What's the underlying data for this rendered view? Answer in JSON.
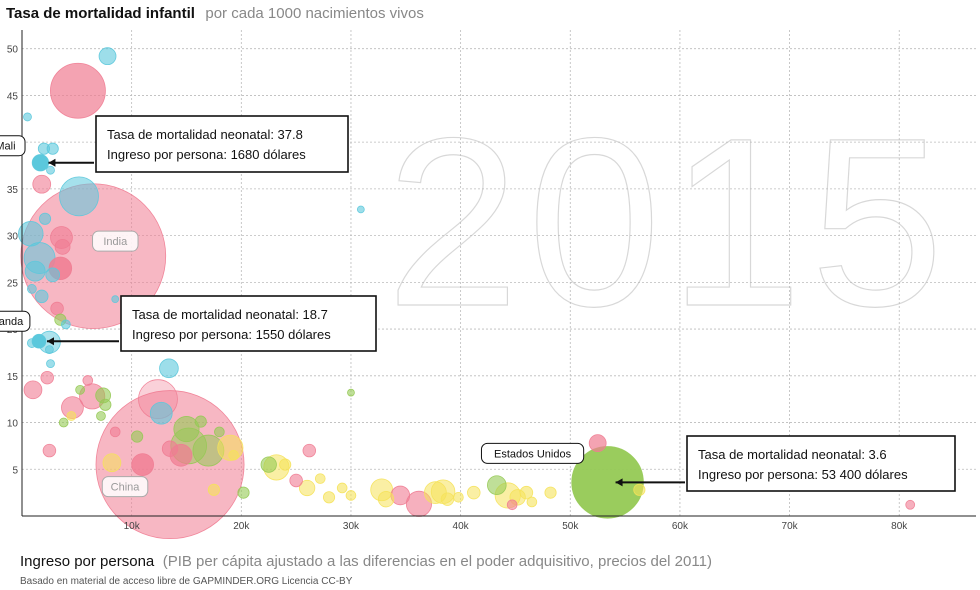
{
  "header": {
    "title": "Tasa de mortalidad infantil",
    "subtitle": "por cada 1000 nacimientos vivos"
  },
  "footer": {
    "xlabel_main": "Ingreso por persona",
    "xlabel_sub": "(PIB per cápita ajustado a las diferencias en el poder adquisitivo, precios del 2011)",
    "source": "Basado en material de acceso libre de GAPMINDER.ORG Licencia CC-BY"
  },
  "year_label": "2015",
  "colors": {
    "africa": "#5bc8dc",
    "asia": "#f07c92",
    "americas": "#95c954",
    "europe": "#f5e25a"
  },
  "chart_data": {
    "type": "scatter",
    "xlim": [
      0,
      87000
    ],
    "ylim": [
      0,
      52
    ],
    "x_ticks": [
      {
        "v": 10000,
        "label": "10k"
      },
      {
        "v": 20000,
        "label": "20k"
      },
      {
        "v": 30000,
        "label": "30k"
      },
      {
        "v": 40000,
        "label": "40k"
      },
      {
        "v": 50000,
        "label": "50k"
      },
      {
        "v": 60000,
        "label": "60k"
      },
      {
        "v": 70000,
        "label": "70k"
      },
      {
        "v": 80000,
        "label": "80k"
      }
    ],
    "y_ticks": [
      {
        "v": 5,
        "label": "5"
      },
      {
        "v": 10,
        "label": "10"
      },
      {
        "v": 15,
        "label": "15"
      },
      {
        "v": 20,
        "label": "20"
      },
      {
        "v": 25,
        "label": "25"
      },
      {
        "v": 30,
        "label": "30"
      },
      {
        "v": 35,
        "label": "35"
      },
      {
        "v": 40,
        "label": "40"
      },
      {
        "v": 45,
        "label": "45"
      },
      {
        "v": 50,
        "label": "50"
      }
    ],
    "grid": true,
    "points": [
      {
        "x": 6500,
        "y": 27.8,
        "size": 1311,
        "region": "asia",
        "alpha": 0.55
      },
      {
        "x": 13500,
        "y": 5.5,
        "size": 1371,
        "region": "asia",
        "alpha": 0.55
      },
      {
        "x": 53400,
        "y": 3.6,
        "size": 321,
        "region": "americas",
        "alpha": 0.95
      },
      {
        "x": 5100,
        "y": 45.5,
        "size": 189,
        "region": "asia",
        "alpha": 0.7
      },
      {
        "x": 7800,
        "y": 49.2,
        "size": 18,
        "region": "africa",
        "alpha": 0.6
      },
      {
        "x": 1680,
        "y": 37.8,
        "size": 17,
        "region": "africa",
        "alpha": 1.0
      },
      {
        "x": 1550,
        "y": 18.7,
        "size": 12,
        "region": "africa",
        "alpha": 1.0
      },
      {
        "x": 2000,
        "y": 39.3,
        "size": 8,
        "region": "africa",
        "alpha": 0.6
      },
      {
        "x": 2800,
        "y": 39.3,
        "size": 8,
        "region": "africa",
        "alpha": 0.6
      },
      {
        "x": 500,
        "y": 42.7,
        "size": 4,
        "region": "africa",
        "alpha": 0.6
      },
      {
        "x": 5200,
        "y": 34.2,
        "size": 95,
        "region": "africa",
        "alpha": 0.55
      },
      {
        "x": 1800,
        "y": 35.5,
        "size": 20,
        "region": "asia",
        "alpha": 0.6
      },
      {
        "x": 2600,
        "y": 37.0,
        "size": 4,
        "region": "africa",
        "alpha": 0.6
      },
      {
        "x": 800,
        "y": 30.2,
        "size": 38,
        "region": "africa",
        "alpha": 0.6
      },
      {
        "x": 3600,
        "y": 29.8,
        "size": 30,
        "region": "asia",
        "alpha": 0.6
      },
      {
        "x": 2100,
        "y": 31.8,
        "size": 8,
        "region": "africa",
        "alpha": 0.6
      },
      {
        "x": 1600,
        "y": 27.6,
        "size": 60,
        "region": "africa",
        "alpha": 0.55
      },
      {
        "x": 1200,
        "y": 26.2,
        "size": 25,
        "region": "africa",
        "alpha": 0.6
      },
      {
        "x": 3500,
        "y": 26.5,
        "size": 32,
        "region": "asia",
        "alpha": 0.85
      },
      {
        "x": 3700,
        "y": 28.8,
        "size": 14,
        "region": "asia",
        "alpha": 0.6
      },
      {
        "x": 2800,
        "y": 25.8,
        "size": 12,
        "region": "africa",
        "alpha": 0.6
      },
      {
        "x": 900,
        "y": 24.3,
        "size": 5,
        "region": "africa",
        "alpha": 0.6
      },
      {
        "x": 1800,
        "y": 23.5,
        "size": 10,
        "region": "africa",
        "alpha": 0.6
      },
      {
        "x": 3200,
        "y": 22.2,
        "size": 10,
        "region": "asia",
        "alpha": 0.6
      },
      {
        "x": 3500,
        "y": 21.0,
        "size": 8,
        "region": "americas",
        "alpha": 0.6
      },
      {
        "x": 2500,
        "y": 18.6,
        "size": 30,
        "region": "africa",
        "alpha": 0.5
      },
      {
        "x": 900,
        "y": 18.5,
        "size": 5,
        "region": "africa",
        "alpha": 0.6
      },
      {
        "x": 4000,
        "y": 20.5,
        "size": 5,
        "region": "africa",
        "alpha": 0.6
      },
      {
        "x": 2500,
        "y": 17.8,
        "size": 4,
        "region": "africa",
        "alpha": 0.6
      },
      {
        "x": 2600,
        "y": 16.3,
        "size": 4,
        "region": "africa",
        "alpha": 0.6
      },
      {
        "x": 2300,
        "y": 14.8,
        "size": 10,
        "region": "asia",
        "alpha": 0.6
      },
      {
        "x": 5300,
        "y": 13.5,
        "size": 5,
        "region": "americas",
        "alpha": 0.6
      },
      {
        "x": 1000,
        "y": 13.5,
        "size": 20,
        "region": "asia",
        "alpha": 0.6
      },
      {
        "x": 6000,
        "y": 14.5,
        "size": 6,
        "region": "asia",
        "alpha": 0.6
      },
      {
        "x": 6400,
        "y": 12.8,
        "size": 40,
        "region": "asia",
        "alpha": 0.6
      },
      {
        "x": 7400,
        "y": 12.9,
        "size": 14,
        "region": "americas",
        "alpha": 0.6
      },
      {
        "x": 4600,
        "y": 11.6,
        "size": 30,
        "region": "asia",
        "alpha": 0.6
      },
      {
        "x": 7600,
        "y": 11.9,
        "size": 8,
        "region": "americas",
        "alpha": 0.6
      },
      {
        "x": 12400,
        "y": 12.5,
        "size": 95,
        "region": "asia",
        "alpha": 0.35
      },
      {
        "x": 13400,
        "y": 15.8,
        "size": 22,
        "region": "africa",
        "alpha": 0.6
      },
      {
        "x": 12700,
        "y": 11.0,
        "size": 30,
        "region": "africa",
        "alpha": 0.6
      },
      {
        "x": 15000,
        "y": 9.3,
        "size": 40,
        "region": "americas",
        "alpha": 0.6
      },
      {
        "x": 15200,
        "y": 7.5,
        "size": 80,
        "region": "americas",
        "alpha": 0.5
      },
      {
        "x": 14500,
        "y": 6.5,
        "size": 30,
        "region": "asia",
        "alpha": 0.7
      },
      {
        "x": 17000,
        "y": 7.0,
        "size": 60,
        "region": "americas",
        "alpha": 0.55
      },
      {
        "x": 19000,
        "y": 7.3,
        "size": 40,
        "region": "europe",
        "alpha": 0.55
      },
      {
        "x": 8200,
        "y": 5.7,
        "size": 20,
        "region": "europe",
        "alpha": 0.55
      },
      {
        "x": 11000,
        "y": 5.5,
        "size": 30,
        "region": "asia",
        "alpha": 0.8
      },
      {
        "x": 13500,
        "y": 7.2,
        "size": 15,
        "region": "asia",
        "alpha": 0.6
      },
      {
        "x": 16300,
        "y": 10.1,
        "size": 8,
        "region": "americas",
        "alpha": 0.6
      },
      {
        "x": 18000,
        "y": 9.0,
        "size": 6,
        "region": "americas",
        "alpha": 0.6
      },
      {
        "x": 19300,
        "y": 6.5,
        "size": 6,
        "region": "europe",
        "alpha": 0.6
      },
      {
        "x": 10500,
        "y": 8.5,
        "size": 8,
        "region": "americas",
        "alpha": 0.6
      },
      {
        "x": 8500,
        "y": 9.0,
        "size": 6,
        "region": "asia",
        "alpha": 0.6
      },
      {
        "x": 2500,
        "y": 7.0,
        "size": 10,
        "region": "asia",
        "alpha": 0.6
      },
      {
        "x": 4500,
        "y": 10.7,
        "size": 5,
        "region": "europe",
        "alpha": 0.6
      },
      {
        "x": 3800,
        "y": 10.0,
        "size": 5,
        "region": "americas",
        "alpha": 0.6
      },
      {
        "x": 7200,
        "y": 10.7,
        "size": 5,
        "region": "americas",
        "alpha": 0.6
      },
      {
        "x": 23200,
        "y": 5.2,
        "size": 40,
        "region": "europe",
        "alpha": 0.55
      },
      {
        "x": 22500,
        "y": 5.5,
        "size": 15,
        "region": "americas",
        "alpha": 0.6
      },
      {
        "x": 24000,
        "y": 5.5,
        "size": 8,
        "region": "europe",
        "alpha": 0.6
      },
      {
        "x": 25000,
        "y": 3.8,
        "size": 10,
        "region": "asia",
        "alpha": 0.6
      },
      {
        "x": 26000,
        "y": 3.0,
        "size": 15,
        "region": "europe",
        "alpha": 0.55
      },
      {
        "x": 26200,
        "y": 7.0,
        "size": 10,
        "region": "asia",
        "alpha": 0.6
      },
      {
        "x": 20200,
        "y": 2.5,
        "size": 8,
        "region": "americas",
        "alpha": 0.6
      },
      {
        "x": 17500,
        "y": 2.8,
        "size": 8,
        "region": "europe",
        "alpha": 0.6
      },
      {
        "x": 27200,
        "y": 4.0,
        "size": 6,
        "region": "europe",
        "alpha": 0.6
      },
      {
        "x": 28000,
        "y": 2.0,
        "size": 8,
        "region": "europe",
        "alpha": 0.6
      },
      {
        "x": 29200,
        "y": 3.0,
        "size": 6,
        "region": "europe",
        "alpha": 0.6
      },
      {
        "x": 30000,
        "y": 2.2,
        "size": 6,
        "region": "europe",
        "alpha": 0.6
      },
      {
        "x": 32800,
        "y": 2.8,
        "size": 30,
        "region": "europe",
        "alpha": 0.55
      },
      {
        "x": 33200,
        "y": 1.8,
        "size": 15,
        "region": "europe",
        "alpha": 0.55
      },
      {
        "x": 34500,
        "y": 2.2,
        "size": 22,
        "region": "asia",
        "alpha": 0.6
      },
      {
        "x": 36200,
        "y": 1.3,
        "size": 40,
        "region": "asia",
        "alpha": 0.6
      },
      {
        "x": 37700,
        "y": 2.5,
        "size": 30,
        "region": "europe",
        "alpha": 0.55
      },
      {
        "x": 38400,
        "y": 2.6,
        "size": 35,
        "region": "europe",
        "alpha": 0.55
      },
      {
        "x": 38800,
        "y": 1.8,
        "size": 10,
        "region": "europe",
        "alpha": 0.55
      },
      {
        "x": 39800,
        "y": 2.0,
        "size": 6,
        "region": "europe",
        "alpha": 0.6
      },
      {
        "x": 41200,
        "y": 2.5,
        "size": 10,
        "region": "europe",
        "alpha": 0.55
      },
      {
        "x": 43300,
        "y": 3.3,
        "size": 22,
        "region": "americas",
        "alpha": 0.6
      },
      {
        "x": 44300,
        "y": 2.2,
        "size": 40,
        "region": "europe",
        "alpha": 0.55
      },
      {
        "x": 45200,
        "y": 2.0,
        "size": 15,
        "region": "europe",
        "alpha": 0.55
      },
      {
        "x": 46000,
        "y": 2.5,
        "size": 10,
        "region": "europe",
        "alpha": 0.6
      },
      {
        "x": 46500,
        "y": 1.5,
        "size": 6,
        "region": "europe",
        "alpha": 0.6
      },
      {
        "x": 44700,
        "y": 1.2,
        "size": 6,
        "region": "asia",
        "alpha": 0.6
      },
      {
        "x": 48200,
        "y": 2.5,
        "size": 8,
        "region": "europe",
        "alpha": 0.6
      },
      {
        "x": 52500,
        "y": 7.8,
        "size": 18,
        "region": "asia",
        "alpha": 0.7
      },
      {
        "x": 56300,
        "y": 2.8,
        "size": 8,
        "region": "europe",
        "alpha": 0.6
      },
      {
        "x": 81000,
        "y": 1.2,
        "size": 5,
        "region": "asia",
        "alpha": 0.6
      },
      {
        "x": 30900,
        "y": 32.8,
        "size": 3,
        "region": "africa",
        "alpha": 0.6
      },
      {
        "x": 30000,
        "y": 13.2,
        "size": 3,
        "region": "americas",
        "alpha": 0.6
      },
      {
        "x": 8500,
        "y": 23.2,
        "size": 3,
        "region": "africa",
        "alpha": 0.6
      },
      {
        "x": 17500,
        "y": 22.3,
        "size": 3,
        "region": "africa",
        "alpha": 0.6
      },
      {
        "x": 18300,
        "y": 22.6,
        "size": 5,
        "region": "asia",
        "alpha": 0.6
      },
      {
        "x": 20500,
        "y": 23.0,
        "size": 4,
        "region": "africa",
        "alpha": 0.6
      },
      {
        "x": 12000,
        "y": 21.0,
        "size": 3,
        "region": "americas",
        "alpha": 0.6
      }
    ],
    "labels": [
      {
        "text": "Mali",
        "x": 1680,
        "y": 37.8,
        "dx": -35,
        "dy": -17,
        "style": "dark"
      },
      {
        "text": "India",
        "x": 6500,
        "y": 27.8,
        "dx": 22,
        "dy": -15,
        "style": "muted"
      },
      {
        "text": "Ruanda",
        "x": 1550,
        "y": 18.7,
        "dx": -35,
        "dy": -20,
        "style": "dark"
      },
      {
        "text": "China",
        "x": 13500,
        "y": 5.5,
        "dx": -45,
        "dy": 22,
        "style": "muted"
      },
      {
        "text": "Estados Unidos",
        "x": 53400,
        "y": 3.6,
        "dx": -75,
        "dy": -29,
        "style": "dark"
      }
    ],
    "annotations": [
      {
        "target_x": 1680,
        "target_y": 37.8,
        "line1": "Tasa de mortalidad neonatal: 37.8",
        "line2": "Ingreso por persona: 1680 dólares"
      },
      {
        "target_x": 1550,
        "target_y": 18.7,
        "line1": "Tasa de mortalidad neonatal: 18.7",
        "line2": "Ingreso por persona: 1550 dólares"
      },
      {
        "target_x": 53400,
        "target_y": 3.6,
        "line1": "Tasa de mortalidad neonatal: 3.6",
        "line2": "Ingreso por persona: 53 400 dólares"
      }
    ]
  }
}
